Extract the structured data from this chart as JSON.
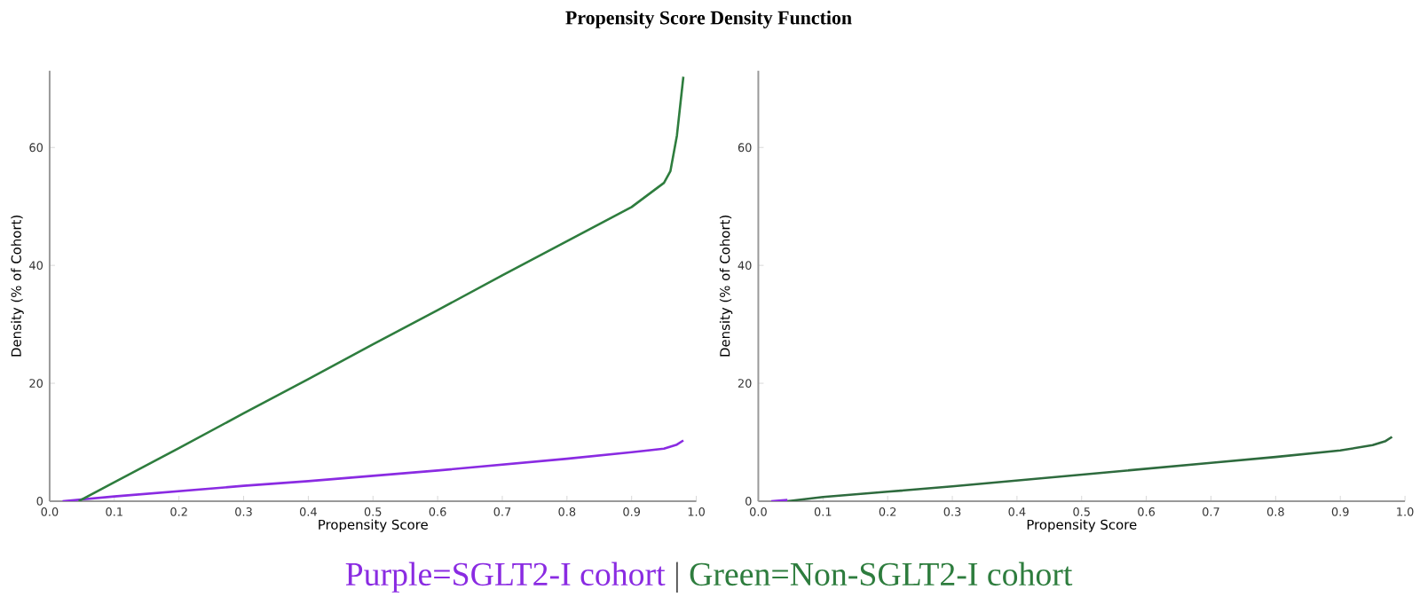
{
  "chart_data": [
    {
      "type": "line",
      "title": "Propensity Score Density Function",
      "xlabel": "Propensity Score",
      "ylabel": "Density (% of Cohort)",
      "xlim": [
        0,
        1
      ],
      "ylim": [
        0,
        73
      ],
      "xticks": [
        {
          "value": 0,
          "label": "0.0"
        },
        {
          "value": 0.1,
          "label": "0.1"
        },
        {
          "value": 0.2,
          "label": "0.2"
        },
        {
          "value": 0.3,
          "label": "0.3"
        },
        {
          "value": 0.4,
          "label": "0.4"
        },
        {
          "value": 0.5,
          "label": "0.5"
        },
        {
          "value": 0.6,
          "label": "0.6"
        },
        {
          "value": 0.7,
          "label": "0.7"
        },
        {
          "value": 0.8,
          "label": "0.8"
        },
        {
          "value": 0.9,
          "label": "0.9"
        },
        {
          "value": 1,
          "label": "1.0"
        }
      ],
      "yticks": [
        0,
        20,
        40,
        60
      ],
      "annotations": [
        "Purple=SGLT2-I cohort",
        "|",
        "Green=Non-SGLT2-I cohort"
      ],
      "series": [
        {
          "color": "#8a2be2",
          "x": [
            0.02,
            0.1,
            0.2,
            0.3,
            0.4,
            0.5,
            0.6,
            0.7,
            0.8,
            0.9,
            0.95,
            0.97,
            0.98
          ],
          "values": [
            0,
            0.8,
            1.7,
            2.6,
            3.4,
            4.3,
            5.2,
            6.2,
            7.2,
            8.3,
            8.9,
            9.6,
            10.3
          ]
        },
        {
          "color": "#2e7d3e",
          "x": [
            0.045,
            0.1,
            0.2,
            0.3,
            0.4,
            0.5,
            0.6,
            0.7,
            0.8,
            0.9,
            0.95,
            0.96,
            0.97,
            0.98
          ],
          "values": [
            0,
            3.2,
            9,
            14.9,
            20.7,
            26.6,
            32.4,
            38.3,
            44.1,
            49.9,
            54,
            56,
            62,
            72
          ]
        }
      ]
    },
    {
      "type": "line",
      "xlabel": "Propensity Score",
      "ylabel": "Density (% of Cohort)",
      "xlim": [
        0,
        1
      ],
      "ylim": [
        0,
        73
      ],
      "xticks": [
        {
          "value": 0,
          "label": "0.0"
        },
        {
          "value": 0.1,
          "label": "0.1"
        },
        {
          "value": 0.2,
          "label": "0.2"
        },
        {
          "value": 0.3,
          "label": "0.3"
        },
        {
          "value": 0.4,
          "label": "0.4"
        },
        {
          "value": 0.5,
          "label": "0.5"
        },
        {
          "value": 0.6,
          "label": "0.6"
        },
        {
          "value": 0.7,
          "label": "0.7"
        },
        {
          "value": 0.8,
          "label": "0.8"
        },
        {
          "value": 0.9,
          "label": "0.9"
        },
        {
          "value": 1,
          "label": "1.0"
        }
      ],
      "yticks": [
        0,
        20,
        40,
        60
      ],
      "series": [
        {
          "color": "#8a2be2",
          "x": [
            0.02,
            0.045
          ],
          "values": [
            0,
            0.2
          ]
        },
        {
          "color": "#2e6b3e",
          "x": [
            0.045,
            0.1,
            0.2,
            0.3,
            0.4,
            0.5,
            0.6,
            0.7,
            0.8,
            0.9,
            0.95,
            0.97,
            0.98
          ],
          "values": [
            0,
            0.7,
            1.6,
            2.5,
            3.5,
            4.5,
            5.5,
            6.5,
            7.5,
            8.6,
            9.5,
            10.2,
            10.9
          ]
        }
      ]
    }
  ]
}
